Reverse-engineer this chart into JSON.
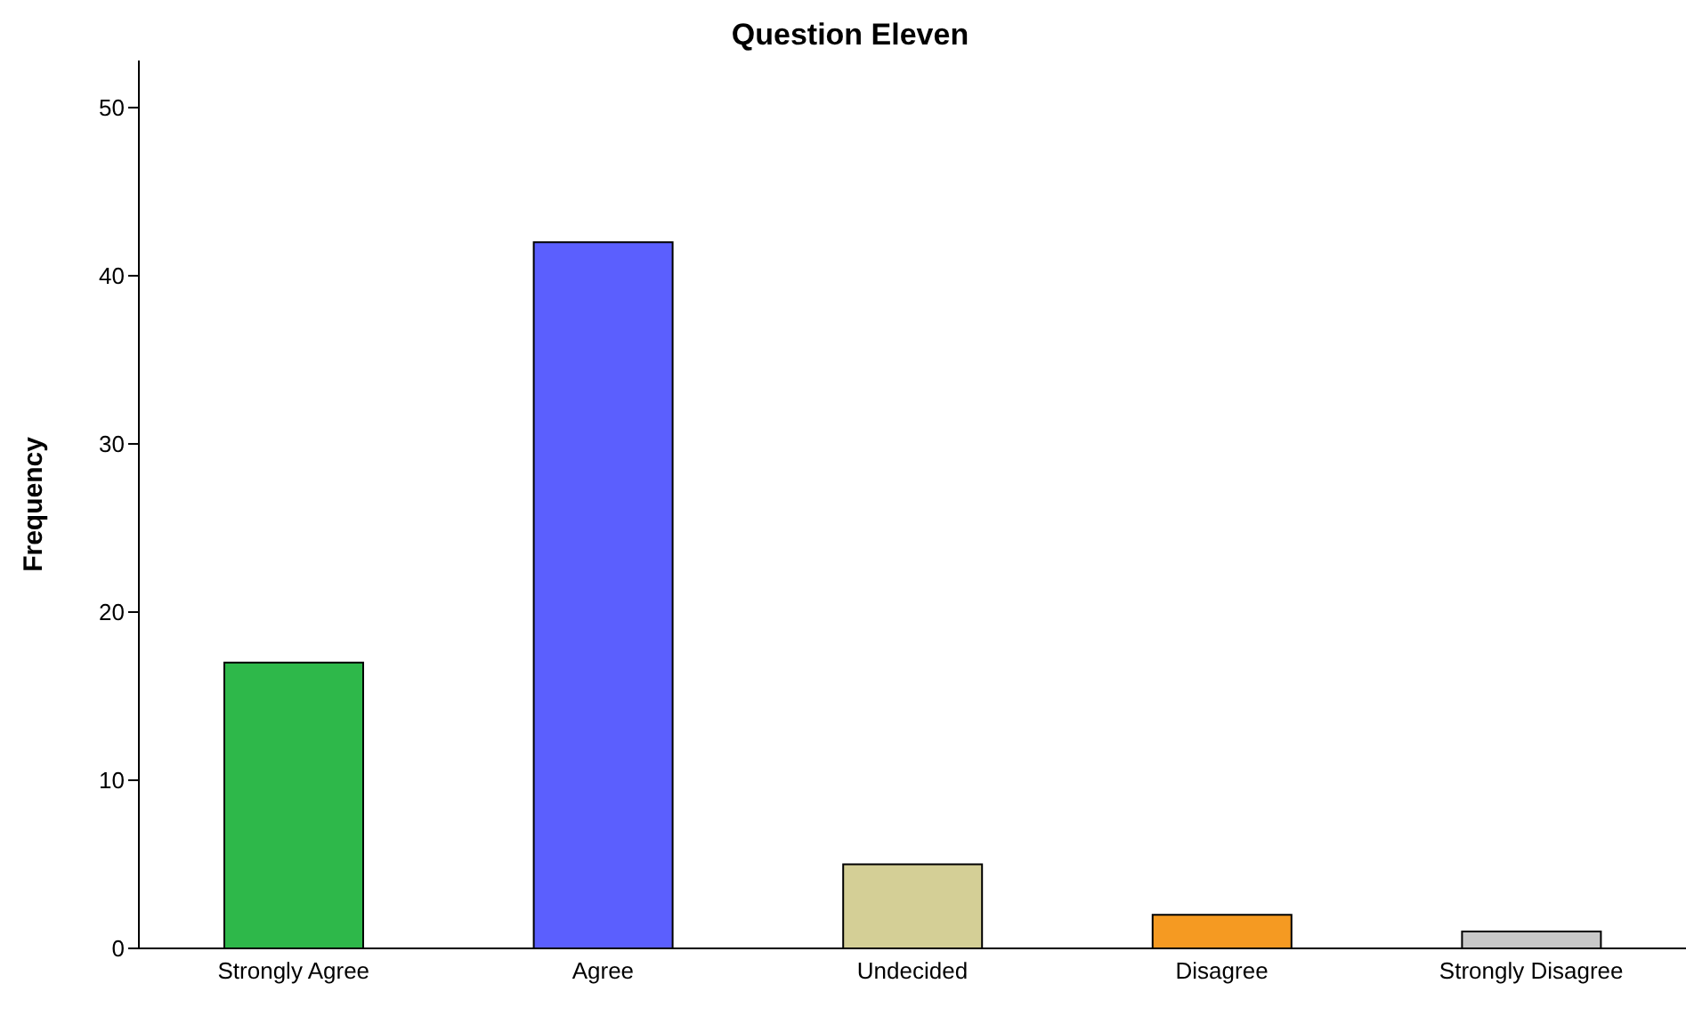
{
  "chart_data": {
    "type": "bar",
    "title": "Question Eleven",
    "ylabel": "Frequency",
    "categories": [
      "Strongly Agree",
      "Agree",
      "Undecided",
      "Disagree",
      "Strongly Disagree"
    ],
    "values": [
      17,
      42,
      5,
      2,
      1
    ],
    "colors": [
      "#2eb84a",
      "#5b5ffe",
      "#d4cf96",
      "#f59a22",
      "#c8c8c8"
    ],
    "ylim": [
      0,
      52.8
    ],
    "yticks": [
      0,
      10,
      20,
      30,
      40,
      50
    ],
    "grid": false
  }
}
